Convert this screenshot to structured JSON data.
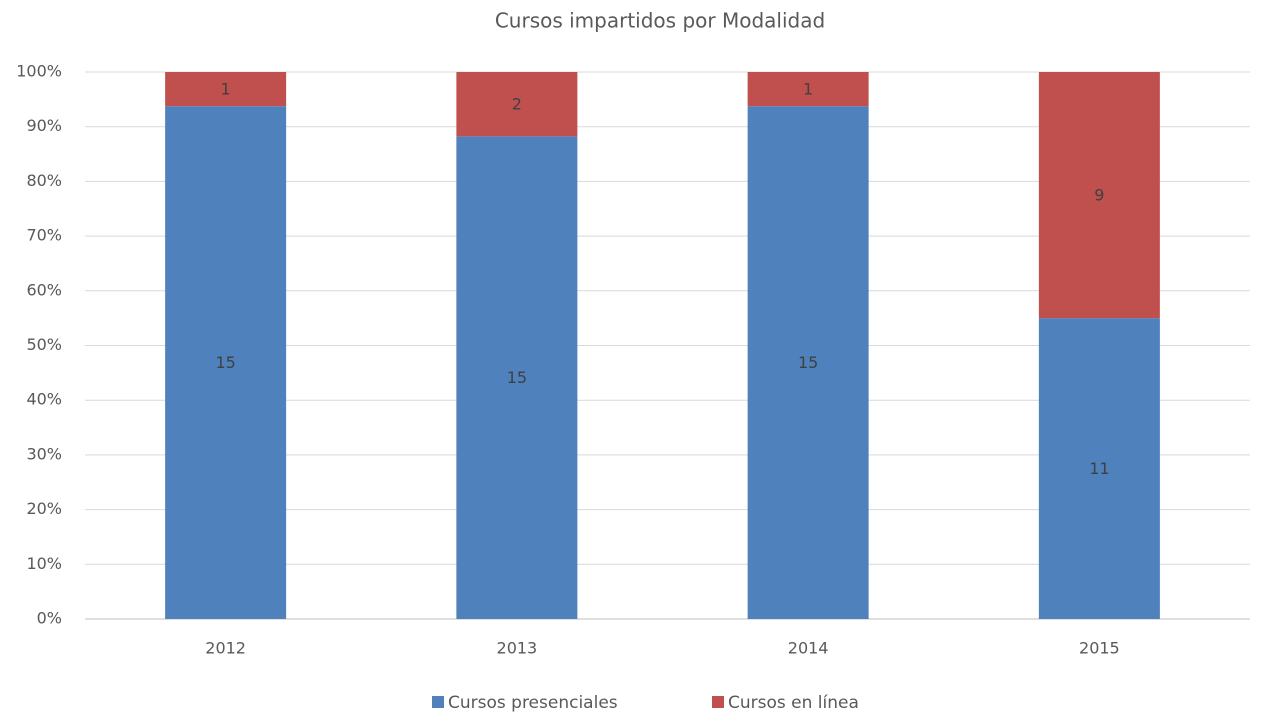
{
  "chart_data": {
    "type": "bar",
    "stacked": "percent",
    "title": "Cursos impartidos por Modalidad",
    "categories": [
      "2012",
      "2013",
      "2014",
      "2015"
    ],
    "series": [
      {
        "name": "Cursos presenciales",
        "color": "#4f81bd",
        "values": [
          15,
          15,
          15,
          11
        ]
      },
      {
        "name": "Cursos en línea",
        "color": "#c0504d",
        "values": [
          1,
          2,
          1,
          9
        ]
      }
    ],
    "ylim": [
      0,
      100
    ],
    "yticks": [
      {
        "value": 0,
        "label": "0%"
      },
      {
        "value": 10,
        "label": "10%"
      },
      {
        "value": 20,
        "label": "20%"
      },
      {
        "value": 30,
        "label": "30%"
      },
      {
        "value": 40,
        "label": "40%"
      },
      {
        "value": 50,
        "label": "50%"
      },
      {
        "value": 60,
        "label": "60%"
      },
      {
        "value": 70,
        "label": "70%"
      },
      {
        "value": 80,
        "label": "80%"
      },
      {
        "value": 90,
        "label": "90%"
      },
      {
        "value": 100,
        "label": "100%"
      }
    ],
    "grid": true,
    "legend": "bottom"
  }
}
